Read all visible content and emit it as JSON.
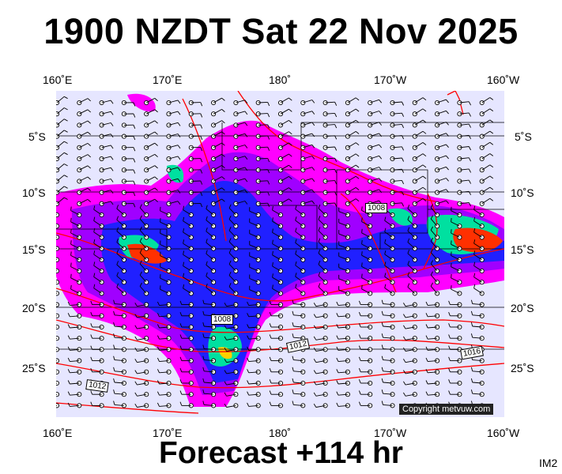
{
  "title": "1900 NZDT Sat 22 Nov 2025",
  "footer": "Forecast +114 hr",
  "image_tag": "IM2",
  "copyright": "Copyright metvuw.com",
  "axes": {
    "lon_top": [
      "160˚E",
      "170˚E",
      "180˚",
      "170˚W",
      "160˚W"
    ],
    "lon_bottom": [
      "160˚E",
      "170˚E",
      "180˚",
      "170˚W",
      "160˚W"
    ],
    "lat_left": [
      "5˚S",
      "10˚S",
      "15˚S",
      "20˚S",
      "25˚S"
    ],
    "lat_right": [
      "5˚S",
      "10˚S",
      "15˚S",
      "20˚S",
      "25˚S"
    ]
  },
  "isobar_labels": [
    "1008",
    "1008",
    "1012",
    "1016",
    "1012"
  ],
  "colors": {
    "background": "#e6e6ff",
    "precip_light": "#ff00ff",
    "precip_med": "#a000ff",
    "precip_heavy": "#2020ff",
    "precip_vheavy": "#00e0a0",
    "precip_extreme": "#ff3000",
    "isobar": "#ff0000",
    "borders": "#000000"
  }
}
